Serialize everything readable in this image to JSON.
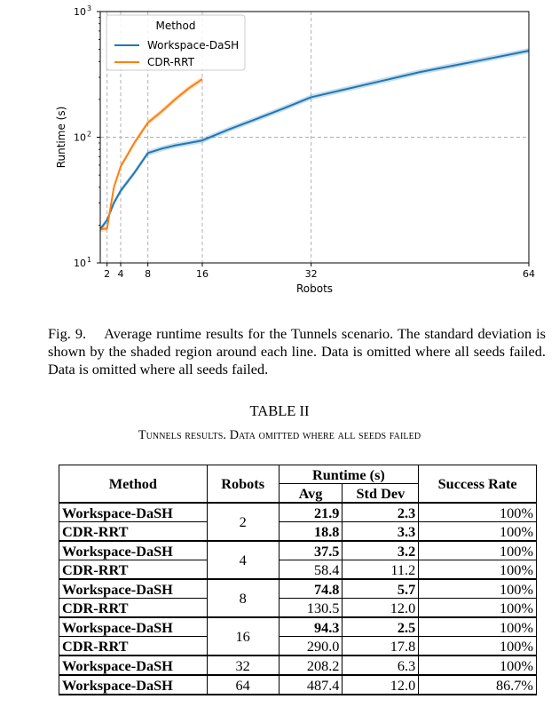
{
  "chart_data": {
    "type": "line",
    "title": "",
    "xlabel": "Robots",
    "ylabel": "Runtime (s)",
    "yscale": "log",
    "xlim": [
      1,
      64
    ],
    "ylim": [
      10,
      1000
    ],
    "xticks": [
      2,
      4,
      8,
      16,
      32,
      64
    ],
    "yticks": [
      10,
      100,
      1000
    ],
    "ytick_labels": [
      [
        "10",
        "1"
      ],
      [
        "10",
        "2"
      ],
      [
        "10",
        "3"
      ]
    ],
    "grid": "dashed vertical lines at 2, 4, 8, 16, 32 and dashed horizontal line at 100",
    "legend": {
      "title": "Method",
      "placement": "top-left"
    },
    "series": [
      {
        "name": "Workspace-DaSH",
        "color": "#1f77b4",
        "x": [
          1,
          2,
          3,
          4,
          6,
          8,
          10,
          12,
          14,
          16,
          20,
          24,
          28,
          32,
          40,
          48,
          56,
          64
        ],
        "y": [
          18.5,
          21.9,
          30,
          37.5,
          52,
          74.8,
          81,
          86,
          90,
          94.3,
          116,
          140,
          170,
          208.2,
          262,
          330,
          400,
          487.4
        ]
      },
      {
        "name": "CDR-RRT",
        "color": "#ff7f0e",
        "x": [
          1,
          2,
          3,
          4,
          6,
          8,
          10,
          12,
          14,
          16
        ],
        "y": [
          18.5,
          18.8,
          40,
          58.4,
          90,
          130.5,
          160,
          200,
          245,
          290
        ]
      }
    ]
  },
  "caption": {
    "label": "Fig. 9.",
    "text": "Average runtime results for the Tunnels scenario. The standard deviation is shown by the shaded region around each line. Data is omitted where all seeds failed. Data is omitted where all seeds failed."
  },
  "table": {
    "number": "TABLE II",
    "caption": "Tunnels results. Data omitted where all seeds failed",
    "headers": {
      "method": "Method",
      "robots": "Robots",
      "runtime": "Runtime (s)",
      "avg": "Avg",
      "std": "Std Dev",
      "success": "Success Rate"
    },
    "groups": [
      {
        "robots": "2",
        "rows": [
          {
            "method": "Workspace-DaSH",
            "avg": "21.9",
            "std": "2.3",
            "success": "100%",
            "bold_avg": true,
            "bold_std": true
          },
          {
            "method": "CDR-RRT",
            "avg": "18.8",
            "std": "3.3",
            "success": "100%",
            "bold_avg": true,
            "bold_std": true
          }
        ]
      },
      {
        "robots": "4",
        "rows": [
          {
            "method": "Workspace-DaSH",
            "avg": "37.5",
            "std": "3.2",
            "success": "100%",
            "bold_avg": true,
            "bold_std": true
          },
          {
            "method": "CDR-RRT",
            "avg": "58.4",
            "std": "11.2",
            "success": "100%",
            "bold_avg": false,
            "bold_std": false
          }
        ]
      },
      {
        "robots": "8",
        "rows": [
          {
            "method": "Workspace-DaSH",
            "avg": "74.8",
            "std": "5.7",
            "success": "100%",
            "bold_avg": true,
            "bold_std": true
          },
          {
            "method": "CDR-RRT",
            "avg": "130.5",
            "std": "12.0",
            "success": "100%",
            "bold_avg": false,
            "bold_std": false
          }
        ]
      },
      {
        "robots": "16",
        "rows": [
          {
            "method": "Workspace-DaSH",
            "avg": "94.3",
            "std": "2.5",
            "success": "100%",
            "bold_avg": true,
            "bold_std": true
          },
          {
            "method": "CDR-RRT",
            "avg": "290.0",
            "std": "17.8",
            "success": "100%",
            "bold_avg": false,
            "bold_std": false
          }
        ]
      },
      {
        "robots": "32",
        "rows": [
          {
            "method": "Workspace-DaSH",
            "avg": "208.2",
            "std": "6.3",
            "success": "100%",
            "bold_avg": false,
            "bold_std": false
          }
        ]
      },
      {
        "robots": "64",
        "rows": [
          {
            "method": "Workspace-DaSH",
            "avg": "487.4",
            "std": "12.0",
            "success": "86.7%",
            "bold_avg": false,
            "bold_std": false
          }
        ]
      }
    ]
  }
}
